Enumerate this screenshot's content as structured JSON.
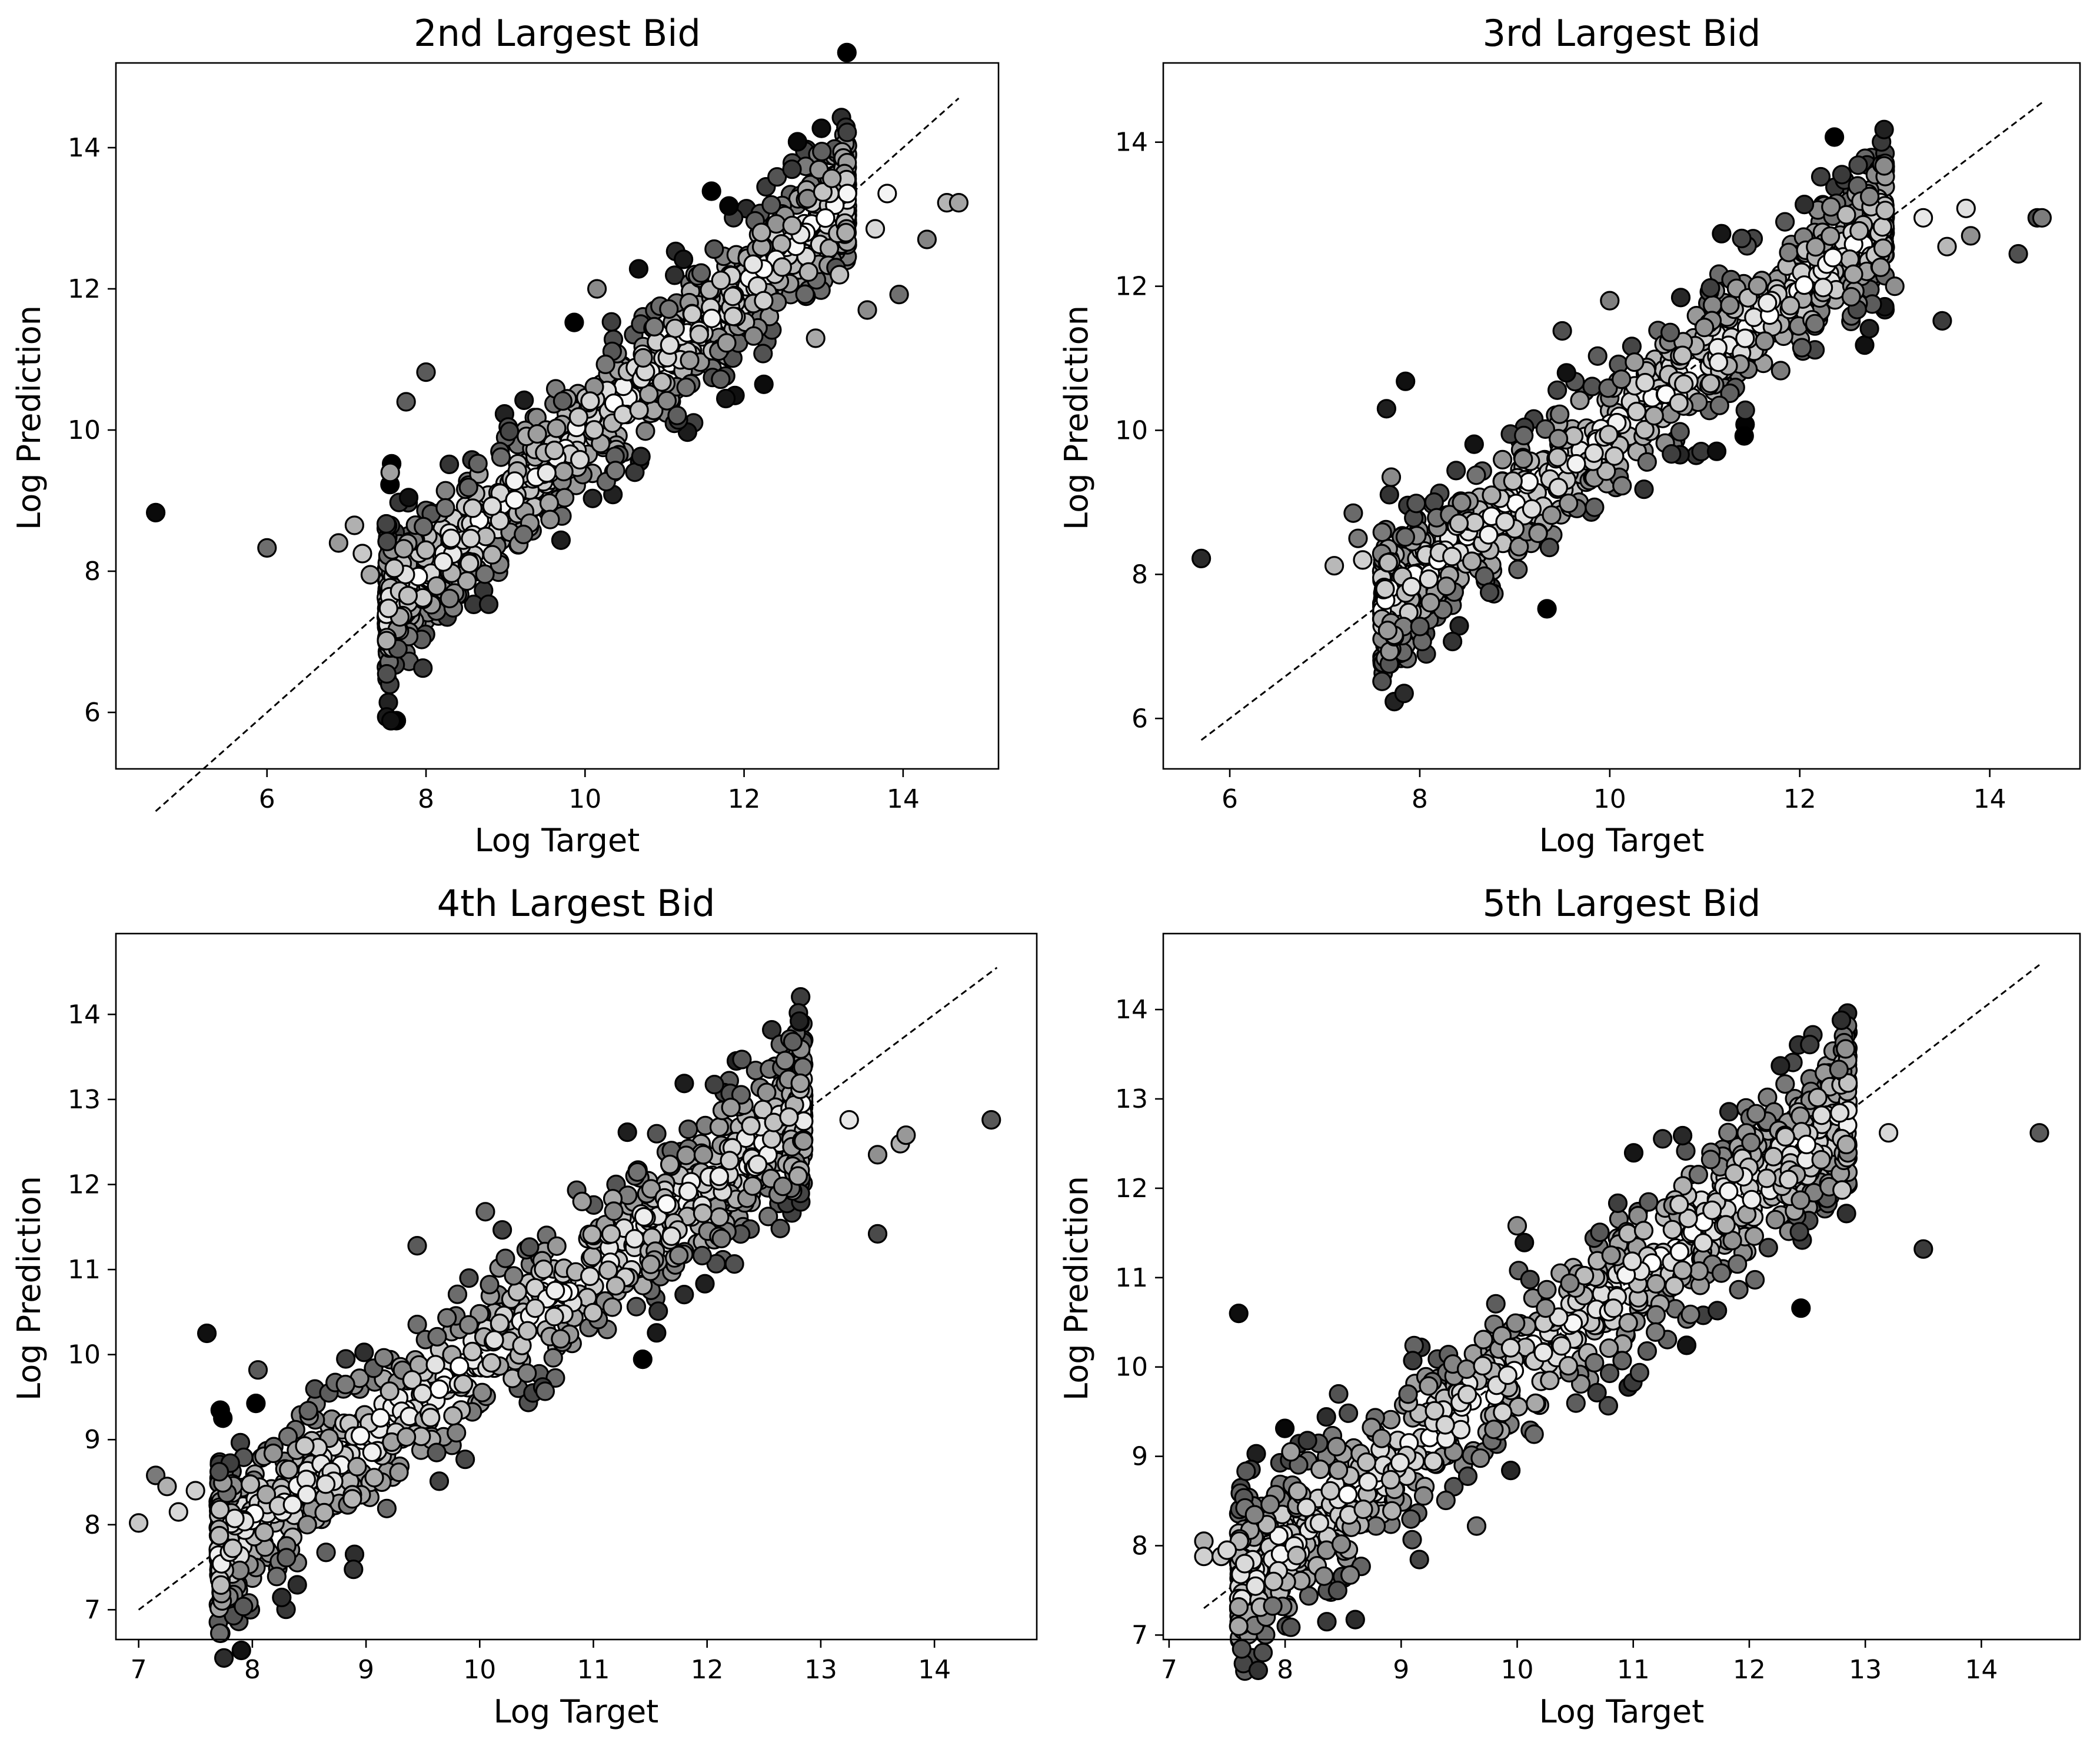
{
  "chart_data": [
    {
      "type": "scatter",
      "title": "2nd Largest Bid",
      "xlabel": "Log Target",
      "ylabel": "Log Prediction",
      "xlim": [
        4.1,
        15.2
      ],
      "ylim": [
        5.2,
        15.2
      ],
      "xticks": [
        6,
        8,
        10,
        12,
        14
      ],
      "yticks": [
        6,
        8,
        10,
        12,
        14
      ],
      "identity_line": [
        4.6,
        14.7
      ],
      "cloud": {
        "count": 1000,
        "x_min": 7.5,
        "x_max": 13.3,
        "spread": 0.55,
        "seed": 11
      },
      "points": [
        {
          "x": 4.6,
          "y": 8.83,
          "color": "#0a0a0a"
        },
        {
          "x": 6.0,
          "y": 8.33,
          "color": "#6e6e6e"
        },
        {
          "x": 6.9,
          "y": 8.4,
          "color": "#9a9a9a"
        },
        {
          "x": 7.1,
          "y": 8.65,
          "color": "#b0b0b0"
        },
        {
          "x": 7.2,
          "y": 8.25,
          "color": "#c8c8c8"
        },
        {
          "x": 7.3,
          "y": 7.95,
          "color": "#a8a8a8"
        },
        {
          "x": 7.55,
          "y": 9.4,
          "color": "#a0a0a0"
        },
        {
          "x": 7.75,
          "y": 10.4,
          "color": "#5e5e5e"
        },
        {
          "x": 8.0,
          "y": 10.82,
          "color": "#5a5a5a"
        },
        {
          "x": 10.15,
          "y": 12.0,
          "color": "#8a8a8a"
        },
        {
          "x": 12.9,
          "y": 11.3,
          "color": "#a8a8a8"
        },
        {
          "x": 13.2,
          "y": 12.2,
          "color": "#c0c0c0"
        },
        {
          "x": 13.3,
          "y": 13.35,
          "color": "#f6f6f6"
        },
        {
          "x": 13.55,
          "y": 11.7,
          "color": "#8c8c8c"
        },
        {
          "x": 13.65,
          "y": 12.85,
          "color": "#d8d8d8"
        },
        {
          "x": 13.8,
          "y": 13.35,
          "color": "#f4f4f4"
        },
        {
          "x": 13.95,
          "y": 11.92,
          "color": "#707070"
        },
        {
          "x": 14.3,
          "y": 12.7,
          "color": "#848484"
        },
        {
          "x": 14.55,
          "y": 13.22,
          "color": "#b4b4b4"
        },
        {
          "x": 14.7,
          "y": 13.22,
          "color": "#a4a4a4"
        }
      ]
    },
    {
      "type": "scatter",
      "title": "3rd Largest Bid",
      "xlabel": "Log Target",
      "ylabel": "Log Prediction",
      "xlim": [
        5.3,
        14.95
      ],
      "ylim": [
        5.3,
        15.1
      ],
      "xticks": [
        6,
        8,
        10,
        12,
        14
      ],
      "yticks": [
        6,
        8,
        10,
        12,
        14
      ],
      "identity_line": [
        5.7,
        14.55
      ],
      "cloud": {
        "count": 1000,
        "x_min": 7.6,
        "x_max": 12.9,
        "spread": 0.5,
        "seed": 23
      },
      "points": [
        {
          "x": 5.7,
          "y": 8.22,
          "color": "#2a2a2a"
        },
        {
          "x": 7.1,
          "y": 8.12,
          "color": "#b8b8b8"
        },
        {
          "x": 7.3,
          "y": 8.85,
          "color": "#6a6a6a"
        },
        {
          "x": 7.35,
          "y": 8.5,
          "color": "#7a7a7a"
        },
        {
          "x": 7.4,
          "y": 8.2,
          "color": "#d0d0d0"
        },
        {
          "x": 7.65,
          "y": 10.3,
          "color": "#1e1e1e"
        },
        {
          "x": 7.7,
          "y": 9.35,
          "color": "#8a8a8a"
        },
        {
          "x": 7.85,
          "y": 10.68,
          "color": "#101010"
        },
        {
          "x": 9.5,
          "y": 11.38,
          "color": "#505050"
        },
        {
          "x": 10.0,
          "y": 11.8,
          "color": "#808080"
        },
        {
          "x": 13.0,
          "y": 12.0,
          "color": "#909090"
        },
        {
          "x": 13.3,
          "y": 12.95,
          "color": "#e8e8e8"
        },
        {
          "x": 13.5,
          "y": 11.52,
          "color": "#3c3c3c"
        },
        {
          "x": 13.55,
          "y": 12.55,
          "color": "#b8b8b8"
        },
        {
          "x": 13.75,
          "y": 13.08,
          "color": "#e0e0e0"
        },
        {
          "x": 13.8,
          "y": 12.7,
          "color": "#909090"
        },
        {
          "x": 14.3,
          "y": 12.45,
          "color": "#505050"
        },
        {
          "x": 14.5,
          "y": 12.95,
          "color": "#4a4a4a"
        },
        {
          "x": 14.55,
          "y": 12.95,
          "color": "#7c7c7c"
        }
      ]
    },
    {
      "type": "scatter",
      "title": "4th Largest Bid",
      "xlabel": "Log Target",
      "ylabel": "Log Prediction",
      "xlim": [
        6.8,
        14.9
      ],
      "ylim": [
        6.65,
        14.95
      ],
      "xticks": [
        7,
        8,
        9,
        10,
        11,
        12,
        13,
        14
      ],
      "yticks": [
        7,
        8,
        9,
        10,
        11,
        12,
        13,
        14
      ],
      "identity_line": [
        7.0,
        14.55
      ],
      "cloud": {
        "count": 1000,
        "x_min": 7.7,
        "x_max": 12.85,
        "spread": 0.5,
        "seed": 37
      },
      "points": [
        {
          "x": 7.0,
          "y": 8.02,
          "color": "#c8c8c8"
        },
        {
          "x": 7.15,
          "y": 8.58,
          "color": "#7a7a7a"
        },
        {
          "x": 7.25,
          "y": 8.45,
          "color": "#b0b0b0"
        },
        {
          "x": 7.35,
          "y": 8.15,
          "color": "#d8d8d8"
        },
        {
          "x": 7.5,
          "y": 8.4,
          "color": "#d0d0d0"
        },
        {
          "x": 7.6,
          "y": 10.25,
          "color": "#101010"
        },
        {
          "x": 8.05,
          "y": 9.82,
          "color": "#5a5a5a"
        },
        {
          "x": 9.45,
          "y": 11.28,
          "color": "#5a5a5a"
        },
        {
          "x": 10.05,
          "y": 11.68,
          "color": "#6a6a6a"
        },
        {
          "x": 10.9,
          "y": 11.8,
          "color": "#a0a0a0"
        },
        {
          "x": 12.8,
          "y": 12.1,
          "color": "#a8a8a8"
        },
        {
          "x": 13.25,
          "y": 12.76,
          "color": "#e8e8e8"
        },
        {
          "x": 13.5,
          "y": 11.42,
          "color": "#4a4a4a"
        },
        {
          "x": 13.5,
          "y": 12.35,
          "color": "#909090"
        },
        {
          "x": 13.7,
          "y": 12.48,
          "color": "#b0b0b0"
        },
        {
          "x": 13.75,
          "y": 12.58,
          "color": "#989898"
        },
        {
          "x": 14.5,
          "y": 12.76,
          "color": "#585858"
        }
      ]
    },
    {
      "type": "scatter",
      "title": "5th Largest Bid",
      "xlabel": "Log Target",
      "ylabel": "Log Prediction",
      "xlim": [
        6.95,
        14.85
      ],
      "ylim": [
        6.95,
        14.85
      ],
      "xticks": [
        7,
        8,
        9,
        10,
        11,
        12,
        13,
        14
      ],
      "yticks": [
        7,
        8,
        9,
        10,
        11,
        12,
        13,
        14
      ],
      "identity_line": [
        7.3,
        14.5
      ],
      "cloud": {
        "count": 1000,
        "x_min": 7.6,
        "x_max": 12.85,
        "spread": 0.48,
        "seed": 53
      },
      "points": [
        {
          "x": 7.3,
          "y": 8.05,
          "color": "#b0b0b0"
        },
        {
          "x": 7.3,
          "y": 7.88,
          "color": "#d0d0d0"
        },
        {
          "x": 7.45,
          "y": 7.88,
          "color": "#c8c8c8"
        },
        {
          "x": 7.5,
          "y": 7.95,
          "color": "#d8d8d8"
        },
        {
          "x": 7.6,
          "y": 10.6,
          "color": "#0e0e0e"
        },
        {
          "x": 7.9,
          "y": 7.6,
          "color": "#c0c0c0"
        },
        {
          "x": 8.05,
          "y": 9.05,
          "color": "#a0a0a0"
        },
        {
          "x": 9.65,
          "y": 8.22,
          "color": "#7a7a7a"
        },
        {
          "x": 10.0,
          "y": 11.58,
          "color": "#909090"
        },
        {
          "x": 12.8,
          "y": 11.98,
          "color": "#c8c8c8"
        },
        {
          "x": 13.2,
          "y": 12.62,
          "color": "#d8d8d8"
        },
        {
          "x": 13.5,
          "y": 11.32,
          "color": "#3a3a3a"
        },
        {
          "x": 14.5,
          "y": 12.62,
          "color": "#5a5a5a"
        }
      ]
    }
  ]
}
